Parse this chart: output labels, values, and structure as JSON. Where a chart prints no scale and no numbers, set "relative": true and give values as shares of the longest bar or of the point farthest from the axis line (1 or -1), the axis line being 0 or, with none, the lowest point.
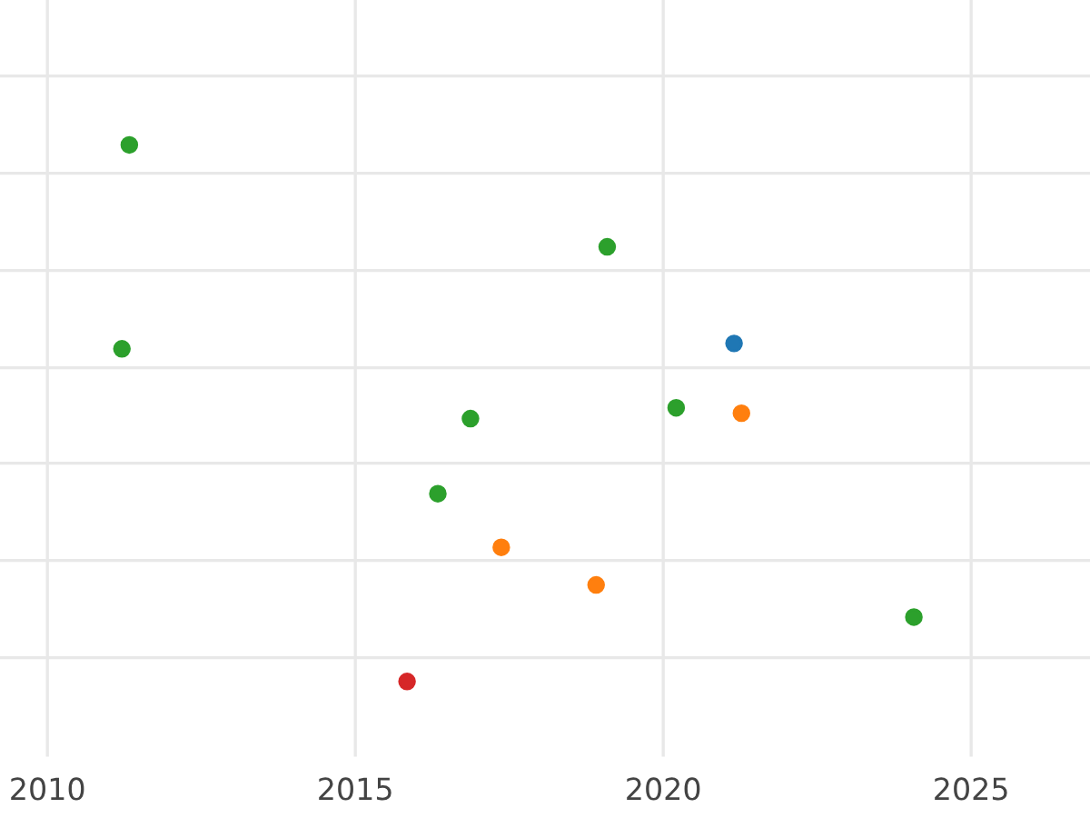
{
  "chart_data": {
    "type": "scatter",
    "relative": true,
    "xlim": [
      2009.23,
      2026.93
    ],
    "xticks": [
      2010,
      2015,
      2020,
      2025
    ],
    "grid": true,
    "marker": "circle",
    "series": [
      {
        "color": "#2ca02c",
        "x": [
          2011.33,
          2019.09,
          2011.21,
          2016.87,
          2020.21,
          2016.34,
          2024.07
        ],
        "values": [
          1,
          0.81,
          0.62,
          0.49,
          0.51,
          0.35,
          0.12
        ]
      },
      {
        "color": "#1f77b4",
        "x": [
          2021.15
        ],
        "values": [
          0.63
        ]
      },
      {
        "color": "#ff7f0e",
        "x": [
          2021.27,
          2017.37,
          2018.91
        ],
        "values": [
          0.5,
          0.25,
          0.18
        ]
      },
      {
        "color": "#d62728",
        "x": [
          2015.84
        ],
        "values": [
          0
        ]
      }
    ]
  }
}
